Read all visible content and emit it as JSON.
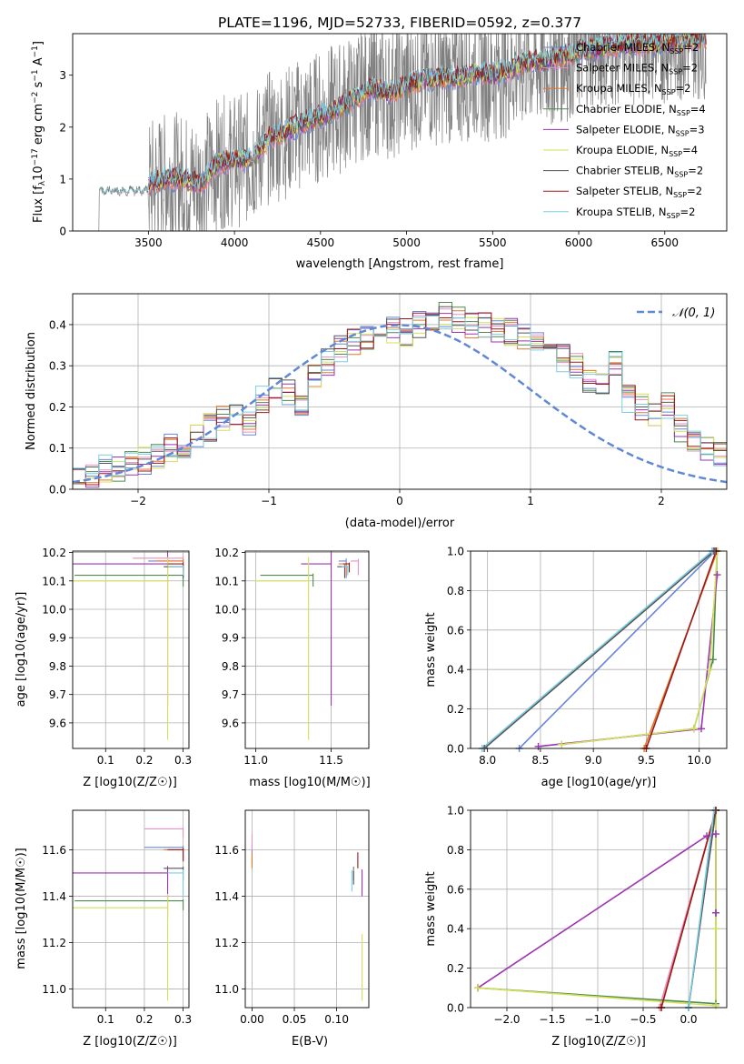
{
  "figure": {
    "title": "PLATE=1196, MJD=52733, FIBERID=0592, z=0.377"
  },
  "colors": {
    "Chabrier MILES": "#6a86d6",
    "Salpeter MILES": "#e98fc2",
    "Kroupa MILES": "#e0772c",
    "Chabrier ELODIE": "#4f8a4f",
    "Salpeter ELODIE": "#9b35b0",
    "Kroupa ELODIE": "#d4e05a",
    "Chabrier STELIB": "#555555",
    "Salpeter STELIB": "#9a1a1a",
    "Kroupa STELIB": "#7ccde0",
    "data": "#808080",
    "gauss": "#5f88d6"
  },
  "chart_data": [
    {
      "id": "spectrum",
      "type": "line",
      "title": "PLATE=1196, MJD=52733, FIBERID=0592, z=0.377",
      "xlabel": "wavelength [Angstrom, rest frame]",
      "ylabel": "Flux [f_λ 10^-17 erg cm^-2 s^-1 A^-1]",
      "xlim": [
        3060,
        6860
      ],
      "ylim": [
        0,
        3.8
      ],
      "xticks": [
        3500,
        4000,
        4500,
        5000,
        5500,
        6000,
        6500
      ],
      "yticks": [
        0,
        1,
        2,
        3
      ],
      "grid": false,
      "legend_position": "top-right",
      "legend": [
        "Chabrier MILES, N_SSP=2",
        "Salpeter MILES, N_SSP=2",
        "Kroupa MILES, N_SSP=2",
        "Chabrier ELODIE, N_SSP=4",
        "Salpeter ELODIE, N_SSP=3",
        "Kroupa ELODIE, N_SSP=4",
        "Chabrier STELIB, N_SSP=2",
        "Salpeter STELIB, N_SSP=2",
        "Kroupa STELIB, N_SSP=2"
      ],
      "data_range_angstrom": [
        3210,
        6740
      ],
      "model_continuum_points": [
        [
          3500,
          0.9
        ],
        [
          3600,
          1.0
        ],
        [
          3700,
          1.0
        ],
        [
          3800,
          0.9
        ],
        [
          3900,
          1.3
        ],
        [
          4000,
          1.35
        ],
        [
          4100,
          1.4
        ],
        [
          4200,
          1.8
        ],
        [
          4300,
          1.9
        ],
        [
          4400,
          2.1
        ],
        [
          4500,
          2.2
        ],
        [
          4600,
          2.35
        ],
        [
          4700,
          2.55
        ],
        [
          4800,
          2.75
        ],
        [
          4900,
          2.65
        ],
        [
          5000,
          2.8
        ],
        [
          5100,
          2.9
        ],
        [
          5200,
          2.95
        ],
        [
          5300,
          2.95
        ],
        [
          5400,
          3.05
        ],
        [
          5500,
          3.0
        ],
        [
          5600,
          3.1
        ],
        [
          5700,
          3.25
        ],
        [
          5800,
          3.25
        ],
        [
          5900,
          3.35
        ],
        [
          6000,
          3.45
        ],
        [
          6100,
          3.5
        ],
        [
          6200,
          3.55
        ],
        [
          6300,
          3.6
        ],
        [
          6400,
          3.6
        ],
        [
          6500,
          3.6
        ],
        [
          6600,
          3.65
        ],
        [
          6700,
          3.7
        ]
      ]
    },
    {
      "id": "residuals",
      "type": "line",
      "xlabel": "(data-model)/error",
      "ylabel": "Normed distribution",
      "xlim": [
        -2.5,
        2.5
      ],
      "ylim": [
        0,
        0.475
      ],
      "xticks": [
        -2,
        -1,
        0,
        1,
        2
      ],
      "yticks": [
        0.0,
        0.1,
        0.2,
        0.3,
        0.4
      ],
      "grid": true,
      "legend_position": "top-right",
      "legend": [
        "N(0,1)"
      ],
      "bin_edges_start": -2.5,
      "bin_width": 0.1,
      "histogram_base": [
        0.02,
        0.03,
        0.05,
        0.05,
        0.06,
        0.07,
        0.08,
        0.1,
        0.11,
        0.13,
        0.15,
        0.17,
        0.18,
        0.16,
        0.22,
        0.25,
        0.24,
        0.2,
        0.28,
        0.31,
        0.34,
        0.36,
        0.37,
        0.38,
        0.39,
        0.38,
        0.4,
        0.41,
        0.42,
        0.41,
        0.4,
        0.4,
        0.39,
        0.38,
        0.37,
        0.35,
        0.34,
        0.32,
        0.3,
        0.27,
        0.26,
        0.3,
        0.22,
        0.2,
        0.18,
        0.2,
        0.15,
        0.12,
        0.1,
        0.08
      ]
    },
    {
      "id": "age_vs_Z",
      "type": "scatter",
      "xlabel": "Z [log10(Z/Z☉)]",
      "ylabel": "age [log10(age/yr)]",
      "xlim": [
        0.015,
        0.315
      ],
      "ylim": [
        9.51,
        10.205
      ],
      "xticks": [
        0.1,
        0.2,
        0.3
      ],
      "yticks": [
        9.6,
        9.7,
        9.8,
        9.9,
        10.0,
        10.1,
        10.2
      ],
      "grid": true,
      "points": [
        {
          "model": "Chabrier MILES",
          "x": 0.3,
          "y": 10.17,
          "xerr": 0.09,
          "yerr": 0.06
        },
        {
          "model": "Salpeter MILES",
          "x": 0.3,
          "y": 10.18,
          "xerr": 0.13,
          "yerr": 0.05
        },
        {
          "model": "Kroupa MILES",
          "x": 0.3,
          "y": 10.17,
          "xerr": 0.07,
          "yerr": 0.04
        },
        {
          "model": "Chabrier ELODIE",
          "x": 0.3,
          "y": 10.12,
          "xerr": 0.28,
          "yerr": 0.04
        },
        {
          "model": "Salpeter ELODIE",
          "x": 0.26,
          "y": 10.16,
          "xerr": 0.27,
          "yerr": 0.5
        },
        {
          "model": "Kroupa ELODIE",
          "x": 0.26,
          "y": 10.1,
          "xerr": 0.3,
          "yerr": 0.56
        },
        {
          "model": "Chabrier STELIB",
          "x": 0.3,
          "y": 10.15,
          "xerr": 0.05,
          "yerr": 0.04
        },
        {
          "model": "Salpeter STELIB",
          "x": 0.3,
          "y": 10.16,
          "xerr": 0.04,
          "yerr": 0.03
        },
        {
          "model": "Kroupa STELIB",
          "x": 0.3,
          "y": 10.15,
          "xerr": 0.04,
          "yerr": 0.03
        }
      ]
    },
    {
      "id": "age_vs_mass",
      "type": "scatter",
      "xlabel": "mass [log10(M/M☉)]",
      "ylabel": "",
      "xlim": [
        10.93,
        11.75
      ],
      "ylim": [
        9.51,
        10.205
      ],
      "xticks": [
        11.0,
        11.5
      ],
      "yticks": [
        9.6,
        9.7,
        9.8,
        9.9,
        10.0,
        10.1,
        10.2
      ],
      "grid": true,
      "points": [
        {
          "model": "Chabrier MILES",
          "x": 11.6,
          "y": 10.17,
          "xerr": 0.05,
          "yerr": 0.06
        },
        {
          "model": "Salpeter MILES",
          "x": 11.68,
          "y": 10.17,
          "xerr": 0.05,
          "yerr": 0.05
        },
        {
          "model": "Kroupa MILES",
          "x": 11.6,
          "y": 10.16,
          "xerr": 0.05,
          "yerr": 0.04
        },
        {
          "model": "Chabrier ELODIE",
          "x": 11.38,
          "y": 10.12,
          "xerr": 0.35,
          "yerr": 0.04
        },
        {
          "model": "Salpeter ELODIE",
          "x": 11.5,
          "y": 10.16,
          "xerr": 0.2,
          "yerr": 0.5
        },
        {
          "model": "Kroupa ELODIE",
          "x": 11.35,
          "y": 10.1,
          "xerr": 0.36,
          "yerr": 0.56
        },
        {
          "model": "Chabrier STELIB",
          "x": 11.59,
          "y": 10.15,
          "xerr": 0.05,
          "yerr": 0.04
        },
        {
          "model": "Salpeter STELIB",
          "x": 11.62,
          "y": 10.16,
          "xerr": 0.04,
          "yerr": 0.03
        },
        {
          "model": "Kroupa STELIB",
          "x": 11.61,
          "y": 10.15,
          "xerr": 0.04,
          "yerr": 0.03
        }
      ]
    },
    {
      "id": "mass_weight_vs_age",
      "type": "line",
      "xlabel": "age [log10(age/yr)]",
      "ylabel": "mass weight",
      "xlim": [
        7.84,
        10.26
      ],
      "ylim": [
        0,
        1.0
      ],
      "xticks": [
        8.0,
        8.5,
        9.0,
        9.5,
        10.0
      ],
      "yticks": [
        0.0,
        0.2,
        0.4,
        0.6,
        0.8,
        1.0
      ],
      "grid": true,
      "series": [
        {
          "model": "Chabrier MILES",
          "x": [
            8.3,
            10.15
          ],
          "y": [
            0.0,
            1.0
          ]
        },
        {
          "model": "Salpeter MILES",
          "x": [
            7.95,
            10.13
          ],
          "y": [
            0.0,
            1.0
          ]
        },
        {
          "model": "Kroupa MILES",
          "x": [
            9.48,
            10.17
          ],
          "y": [
            0.0,
            1.0
          ]
        },
        {
          "model": "Chabrier ELODIE",
          "x": [
            8.7,
            9.95,
            10.13,
            10.17
          ],
          "y": [
            0.02,
            0.1,
            0.45,
            1.0
          ]
        },
        {
          "model": "Salpeter ELODIE",
          "x": [
            8.48,
            10.02,
            10.17
          ],
          "y": [
            0.01,
            0.1,
            0.88
          ]
        },
        {
          "model": "Kroupa ELODIE",
          "x": [
            8.7,
            9.95,
            10.1,
            10.17
          ],
          "y": [
            0.02,
            0.1,
            0.4,
            1.0
          ]
        },
        {
          "model": "Chabrier STELIB",
          "x": [
            7.97,
            10.14
          ],
          "y": [
            0.0,
            1.0
          ]
        },
        {
          "model": "Salpeter STELIB",
          "x": [
            9.5,
            10.16
          ],
          "y": [
            0.0,
            1.0
          ]
        },
        {
          "model": "Kroupa STELIB",
          "x": [
            7.95,
            10.12
          ],
          "y": [
            0.0,
            1.0
          ]
        }
      ]
    },
    {
      "id": "mass_vs_Z",
      "type": "scatter",
      "xlabel": "Z [log10(Z/Z☉)]",
      "ylabel": "mass [log10(M/M☉)]",
      "xlim": [
        0.015,
        0.315
      ],
      "ylim": [
        10.92,
        11.77
      ],
      "xticks": [
        0.1,
        0.2,
        0.3
      ],
      "yticks": [
        11.0,
        11.2,
        11.4,
        11.6
      ],
      "grid": true,
      "points": [
        {
          "model": "Chabrier MILES",
          "x": 0.3,
          "y": 11.61,
          "xerr": 0.1,
          "yerr": 0.05
        },
        {
          "model": "Salpeter MILES",
          "x": 0.3,
          "y": 11.69,
          "xerr": 0.1,
          "yerr": 0.04
        },
        {
          "model": "Kroupa MILES",
          "x": 0.3,
          "y": 11.6,
          "xerr": 0.05,
          "yerr": 0.05
        },
        {
          "model": "Chabrier ELODIE",
          "x": 0.3,
          "y": 11.38,
          "xerr": 0.28,
          "yerr": 0.04
        },
        {
          "model": "Salpeter ELODIE",
          "x": 0.26,
          "y": 11.5,
          "xerr": 0.25,
          "yerr": 0.2
        },
        {
          "model": "Kroupa ELODIE",
          "x": 0.26,
          "y": 11.35,
          "xerr": 0.3,
          "yerr": 0.4
        },
        {
          "model": "Chabrier STELIB",
          "x": 0.3,
          "y": 11.52,
          "xerr": 0.05,
          "yerr": 0.05
        },
        {
          "model": "Salpeter STELIB",
          "x": 0.3,
          "y": 11.6,
          "xerr": 0.04,
          "yerr": 0.05
        },
        {
          "model": "Kroupa STELIB",
          "x": 0.3,
          "y": 11.5,
          "xerr": 0.04,
          "yerr": 0.1
        }
      ]
    },
    {
      "id": "mass_vs_ebv",
      "type": "scatter",
      "xlabel": "E(B-V)",
      "ylabel": "",
      "xlim": [
        -0.008,
        0.138
      ],
      "ylim": [
        10.92,
        11.77
      ],
      "xticks": [
        0.0,
        0.05,
        0.1
      ],
      "yticks": [
        11.0,
        11.2,
        11.4,
        11.6
      ],
      "grid": true,
      "points": [
        {
          "model": "Chabrier MILES",
          "x": 0.0,
          "y": 11.61,
          "yerr": 0.06
        },
        {
          "model": "Salpeter MILES",
          "x": 0.0,
          "y": 11.66,
          "yerr": 0.06
        },
        {
          "model": "Kroupa MILES",
          "x": 0.0,
          "y": 11.58,
          "yerr": 0.06
        },
        {
          "model": "Chabrier ELODIE",
          "x": 0.12,
          "y": 11.52,
          "yerr": 0.05
        },
        {
          "model": "Salpeter ELODIE",
          "x": 0.13,
          "y": 11.5,
          "yerr": 0.1
        },
        {
          "model": "Kroupa ELODIE",
          "x": 0.13,
          "y": 11.2,
          "yerr": 0.25
        },
        {
          "model": "Chabrier STELIB",
          "x": 0.12,
          "y": 11.5,
          "yerr": 0.05
        },
        {
          "model": "Salpeter STELIB",
          "x": 0.125,
          "y": 11.58,
          "yerr": 0.06
        },
        {
          "model": "Kroupa STELIB",
          "x": 0.118,
          "y": 11.5,
          "yerr": 0.08
        }
      ]
    },
    {
      "id": "mass_weight_vs_Z",
      "type": "line",
      "xlabel": "Z [log10(Z/Z☉)]",
      "ylabel": "mass weight",
      "xlim": [
        -2.4,
        0.42
      ],
      "ylim": [
        0,
        1.0
      ],
      "xticks": [
        -2.0,
        -1.5,
        -1.0,
        -0.5,
        0.0
      ],
      "yticks": [
        0.0,
        0.2,
        0.4,
        0.6,
        0.8,
        1.0
      ],
      "grid": true,
      "series": [
        {
          "model": "Chabrier MILES",
          "x": [
            0.0,
            0.3
          ],
          "y": [
            0.0,
            1.0
          ]
        },
        {
          "model": "Salpeter MILES",
          "x": [
            -0.32,
            0.3
          ],
          "y": [
            0.0,
            1.0
          ]
        },
        {
          "model": "Kroupa MILES",
          "x": [
            -0.3,
            0.3
          ],
          "y": [
            0.0,
            1.0
          ]
        },
        {
          "model": "Chabrier ELODIE",
          "x": [
            -2.32,
            0.3,
            0.3,
            0.3
          ],
          "y": [
            0.1,
            0.02,
            0.48,
            1.0
          ]
        },
        {
          "model": "Salpeter ELODIE",
          "x": [
            -2.32,
            0.2,
            0.3,
            0.3
          ],
          "y": [
            0.1,
            0.87,
            0.88,
            0.48
          ]
        },
        {
          "model": "Kroupa ELODIE",
          "x": [
            -2.32,
            0.3,
            0.3,
            0.3
          ],
          "y": [
            0.1,
            0.01,
            0.4,
            1.0
          ]
        },
        {
          "model": "Chabrier STELIB",
          "x": [
            0.0,
            0.3
          ],
          "y": [
            0.0,
            1.0
          ]
        },
        {
          "model": "Salpeter STELIB",
          "x": [
            -0.3,
            0.3
          ],
          "y": [
            0.0,
            1.0
          ]
        },
        {
          "model": "Kroupa STELIB",
          "x": [
            0.0,
            0.28
          ],
          "y": [
            0.0,
            1.0
          ]
        }
      ]
    }
  ]
}
